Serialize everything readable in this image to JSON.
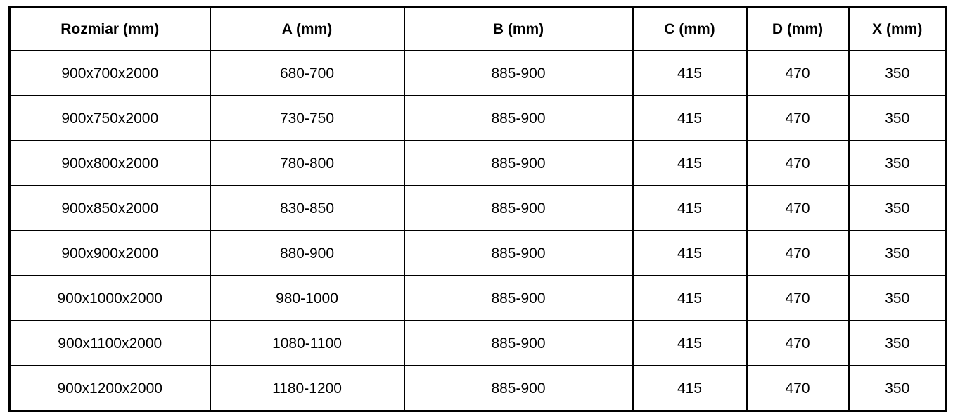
{
  "table": {
    "columns": [
      {
        "label": "Rozmiar (mm)"
      },
      {
        "label": "A (mm)"
      },
      {
        "label": "B (mm)"
      },
      {
        "label": "C (mm)"
      },
      {
        "label": "D (mm)"
      },
      {
        "label": "X (mm)"
      }
    ],
    "rows": [
      [
        "900x700x2000",
        "680-700",
        "885-900",
        "415",
        "470",
        "350"
      ],
      [
        "900x750x2000",
        "730-750",
        "885-900",
        "415",
        "470",
        "350"
      ],
      [
        "900x800x2000",
        "780-800",
        "885-900",
        "415",
        "470",
        "350"
      ],
      [
        "900x850x2000",
        "830-850",
        "885-900",
        "415",
        "470",
        "350"
      ],
      [
        "900x900x2000",
        "880-900",
        "885-900",
        "415",
        "470",
        "350"
      ],
      [
        "900x1000x2000",
        "980-1000",
        "885-900",
        "415",
        "470",
        "350"
      ],
      [
        "900x1100x2000",
        "1080-1100",
        "885-900",
        "415",
        "470",
        "350"
      ],
      [
        "900x1200x2000",
        "1180-1200",
        "885-900",
        "415",
        "470",
        "350"
      ]
    ],
    "colors": {
      "border": "#000000",
      "text": "#000000",
      "background": "#ffffff"
    }
  }
}
